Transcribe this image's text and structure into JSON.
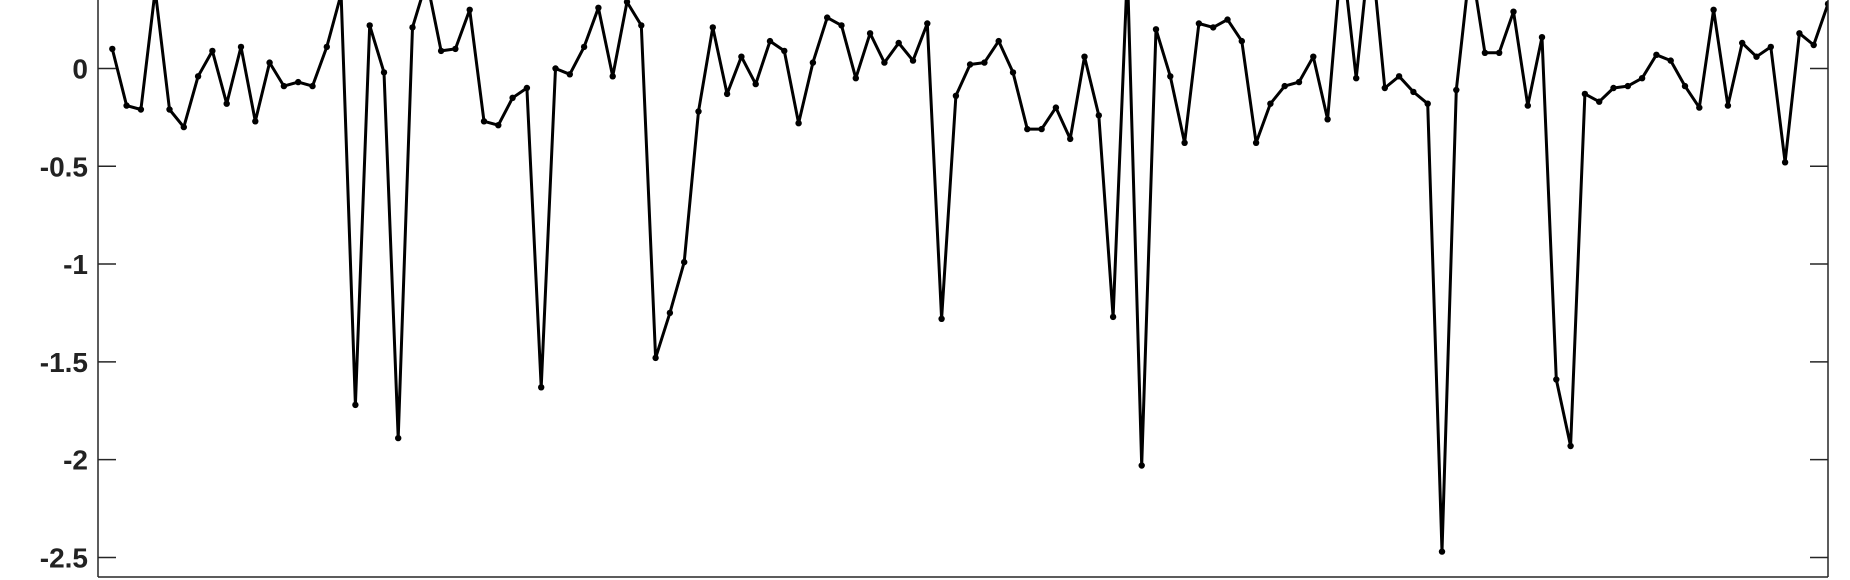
{
  "chart_data": {
    "type": "line",
    "title": "",
    "xlabel": "",
    "ylabel": "",
    "xlim": [
      0,
      121
    ],
    "ylim": [
      -2.6,
      0.35
    ],
    "yticks": [
      0,
      -0.5,
      -1,
      -1.5,
      -2,
      -2.5
    ],
    "ytick_labels": [
      "0",
      "-0.5",
      "-1",
      "-1.5",
      "-2",
      "-2.5"
    ],
    "grid": false,
    "line_color": "#000000",
    "series": [
      {
        "x": [
          1,
          2,
          3,
          4,
          5,
          6,
          7,
          8,
          9,
          10,
          11,
          12,
          13,
          14,
          15,
          16,
          17,
          18,
          19,
          20,
          21,
          22,
          23,
          24,
          25,
          26,
          27,
          28,
          29,
          30,
          31,
          32,
          33,
          34,
          35,
          36,
          37,
          38,
          39,
          40,
          41,
          42,
          43,
          44,
          45,
          46,
          47,
          48,
          49,
          50,
          51,
          52,
          53,
          54,
          55,
          56,
          57,
          58,
          59,
          60,
          61,
          62,
          63,
          64,
          65,
          66,
          67,
          68,
          69,
          70,
          71,
          72,
          73,
          74,
          75,
          76,
          77,
          78,
          79,
          80,
          81,
          82,
          83,
          84,
          85,
          86,
          87,
          88,
          89,
          90,
          91,
          92,
          93,
          94,
          95,
          96,
          97,
          98,
          99,
          100,
          101,
          102,
          103,
          104,
          105,
          106,
          107,
          108,
          109,
          110,
          111,
          112,
          113,
          114,
          115,
          116,
          117,
          118,
          119,
          120,
          121
        ],
        "y": [
          0.1,
          -0.19,
          -0.21,
          0.4,
          -0.21,
          -0.3,
          -0.04,
          0.09,
          -0.18,
          0.11,
          -0.27,
          0.03,
          -0.09,
          -0.07,
          -0.09,
          0.11,
          0.38,
          -1.72,
          0.22,
          -0.02,
          -1.89,
          0.21,
          0.45,
          0.09,
          0.1,
          0.3,
          -0.27,
          -0.29,
          -0.15,
          -0.1,
          -1.63,
          0,
          -0.03,
          0.11,
          0.31,
          -0.04,
          0.34,
          0.22,
          -1.48,
          -1.25,
          -0.99,
          -0.22,
          0.21,
          -0.13,
          0.06,
          -0.08,
          0.14,
          0.09,
          -0.28,
          0.03,
          0.26,
          0.22,
          -0.05,
          0.18,
          0.03,
          0.13,
          0.04,
          0.23,
          -1.28,
          -0.14,
          0.02,
          0.03,
          0.14,
          -0.02,
          -0.31,
          -0.31,
          -0.2,
          -0.36,
          0.06,
          -0.24,
          -1.27,
          0.5,
          -2.03,
          0.2,
          -0.04,
          -0.38,
          0.23,
          0.21,
          0.25,
          0.14,
          -0.38,
          -0.18,
          -0.09,
          -0.07,
          0.06,
          -0.26,
          0.6,
          -0.05,
          0.65,
          -0.1,
          -0.04,
          -0.12,
          -0.18,
          -2.47,
          -0.11,
          0.55,
          0.08,
          0.08,
          0.29,
          -0.19,
          0.16,
          -1.59,
          -1.93,
          -0.13,
          -0.17,
          -0.1,
          -0.09,
          -0.05,
          0.07,
          0.04,
          -0.09,
          -0.2,
          0.3,
          -0.19,
          0.13,
          0.06,
          0.11,
          -0.48,
          0.18,
          0.12,
          0.33
        ]
      }
    ]
  }
}
